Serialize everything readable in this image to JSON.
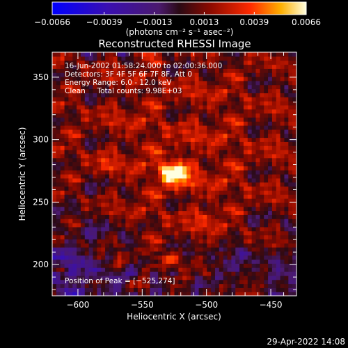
{
  "chart_data": {
    "type": "heatmap",
    "title": "Reconstructed RHESSI Image",
    "xlabel": "Heliocentric X (arcsec)",
    "ylabel": "Heliocentric Y (arcsec)",
    "xlim": [
      -620,
      -430
    ],
    "ylim": [
      175,
      370
    ],
    "xticks": [
      -600,
      -550,
      -500,
      -450
    ],
    "xtick_labels": [
      "−600",
      "−550",
      "−500",
      "−450"
    ],
    "yticks": [
      200,
      250,
      300,
      350
    ],
    "ytick_labels": [
      "200",
      "250",
      "300",
      "350"
    ],
    "colorbar": {
      "range": [
        -0.0066,
        0.0066
      ],
      "ticks": [
        -0.0066,
        -0.0039,
        -0.0013,
        0.0013,
        0.0039,
        0.0066
      ],
      "tick_labels": [
        "−0.0066",
        "−0.0039",
        "−0.0013",
        "0.0013",
        "0.0039",
        "0.0066"
      ],
      "units_label": "(photons cm⁻² s⁻¹ asec⁻²)"
    },
    "annotations": [
      "16-Jun-2002 01:58:24.000 to 02:00:36.000",
      "Detectors: 3F 4F 5F 6F 7F 8F, Att 0",
      "Energy Range: 6.0 - 12.0 keV",
      "Clean     Total counts: 9.98E+03"
    ],
    "peak_label": "Position of Peak = [−525,274]",
    "peak": {
      "x": -525,
      "y": 274
    },
    "secondary_sources": [
      {
        "x": -500,
        "y": 238
      },
      {
        "x": -580,
        "y": 280
      }
    ]
  },
  "footer": {
    "timestamp": "29-Apr-2022 14:08"
  }
}
